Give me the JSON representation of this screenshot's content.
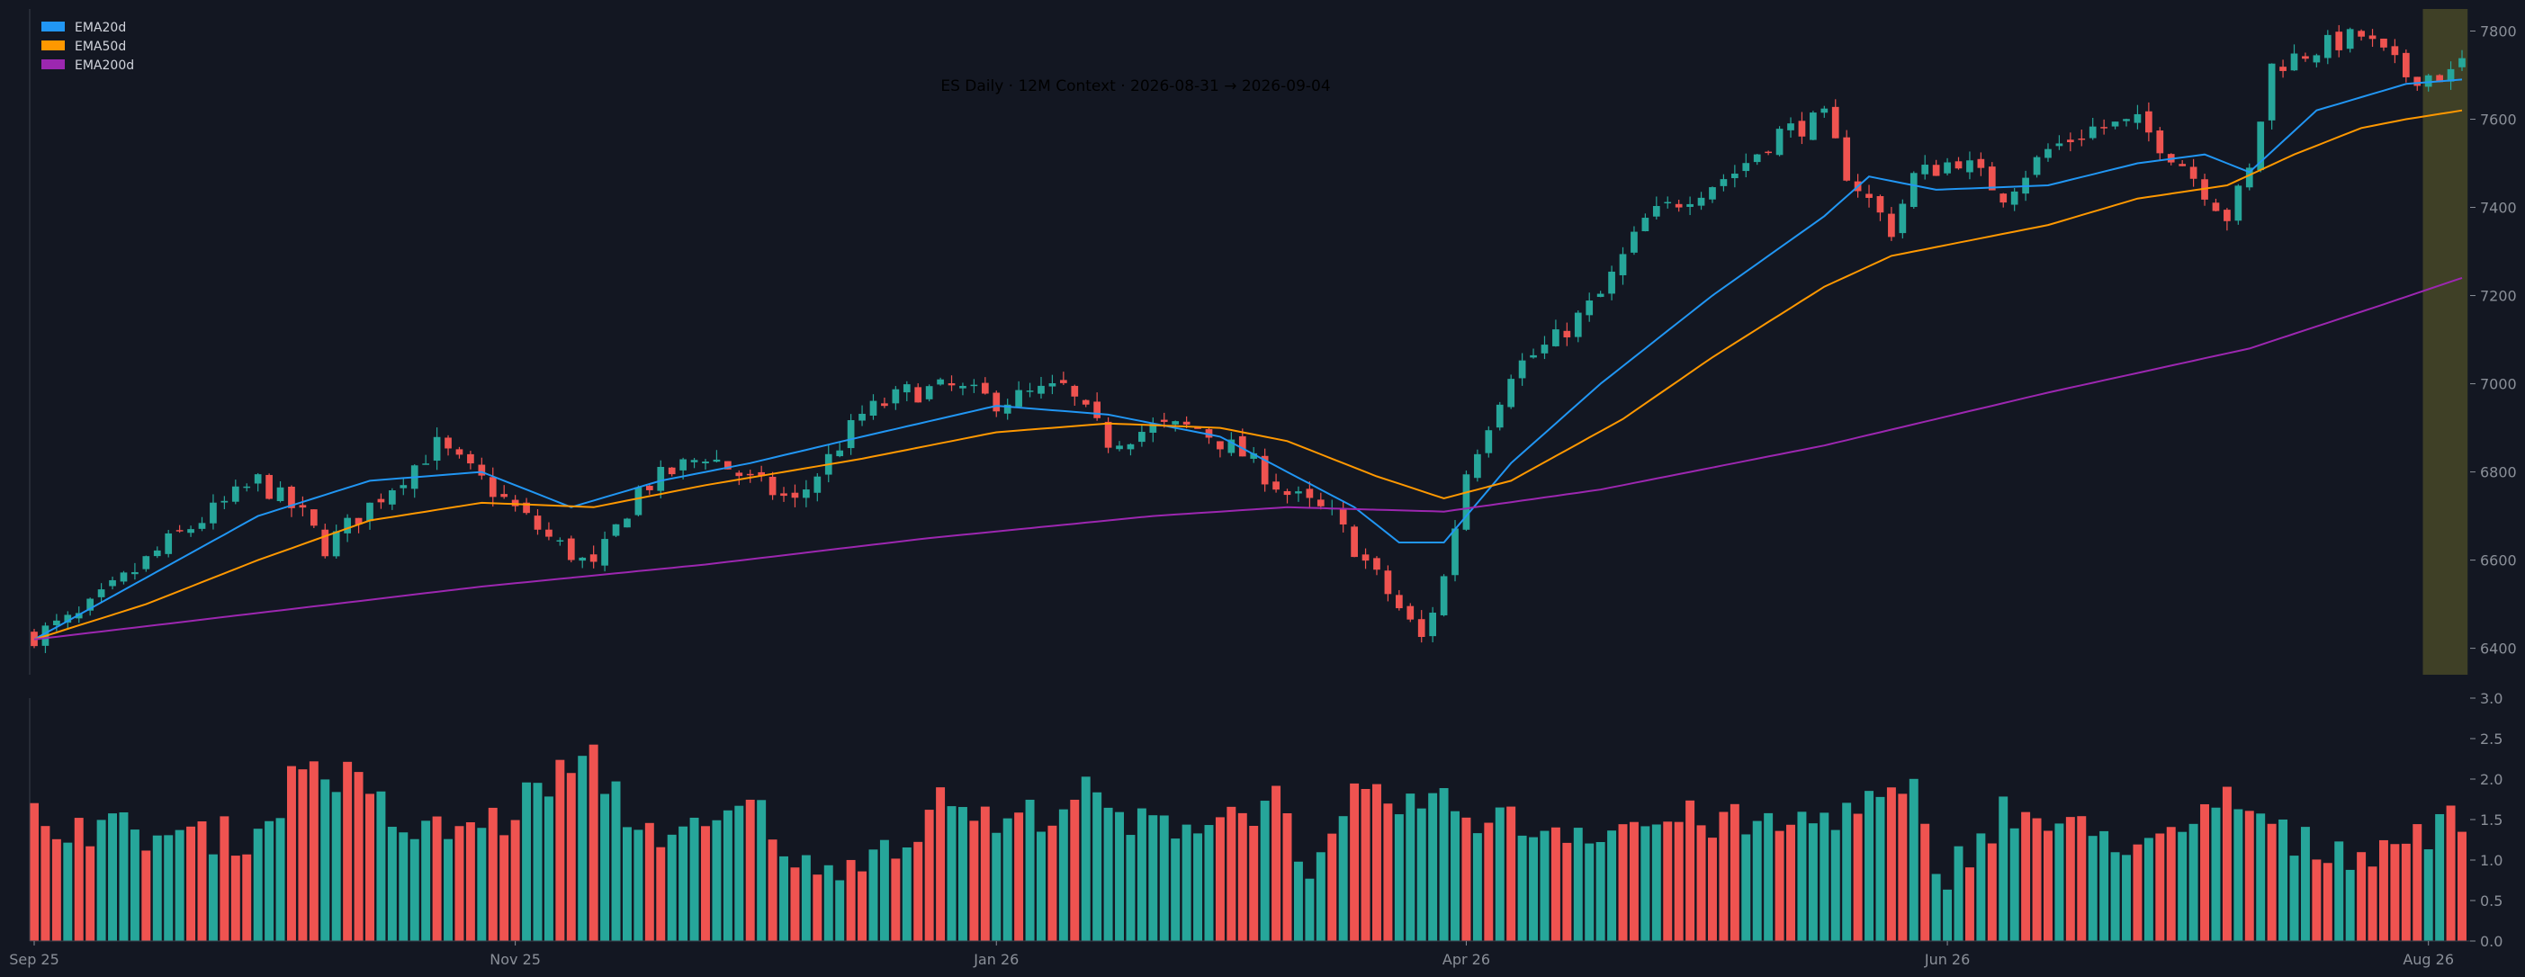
{
  "chart_data": {
    "type": "candlestick",
    "title": "ES Daily · 12M Context · 2026-08-31 → 2026-09-04",
    "price_axis": {
      "ylim": [
        6340,
        7850
      ],
      "ticks": [
        6400,
        6600,
        6800,
        7000,
        7200,
        7400,
        7600,
        7800
      ]
    },
    "volume_axis": {
      "ylim": [
        0,
        3.0
      ],
      "ticks": [
        "0.0",
        "0.5",
        "1.0",
        "1.5",
        "2.0",
        "2.5",
        "3.0"
      ]
    },
    "x_ticks": [
      {
        "label": "Sep 25",
        "index": 0
      },
      {
        "label": "Nov 25",
        "index": 43
      },
      {
        "label": "Jan 26",
        "index": 86
      },
      {
        "label": "Apr 26",
        "index": 128
      },
      {
        "label": "Jun 26",
        "index": 171
      },
      {
        "label": "Aug 26",
        "index": 214
      }
    ],
    "bar_count": 218,
    "highlight_range": {
      "start_index": 214,
      "end_index": 217
    },
    "legend": [
      {
        "name": "EMA20d",
        "color": "#2196f3"
      },
      {
        "name": "EMA50d",
        "color": "#ff9800"
      },
      {
        "name": "EMA200d",
        "color": "#9c27b0"
      }
    ],
    "close_anchors": [
      [
        0,
        6430
      ],
      [
        4,
        6470
      ],
      [
        12,
        6640
      ],
      [
        20,
        6780
      ],
      [
        24,
        6700
      ],
      [
        26,
        6630
      ],
      [
        32,
        6770
      ],
      [
        36,
        6860
      ],
      [
        40,
        6780
      ],
      [
        46,
        6650
      ],
      [
        50,
        6580
      ],
      [
        54,
        6760
      ],
      [
        60,
        6840
      ],
      [
        64,
        6780
      ],
      [
        68,
        6730
      ],
      [
        74,
        6930
      ],
      [
        78,
        6980
      ],
      [
        82,
        6990
      ],
      [
        86,
        6960
      ],
      [
        92,
        6990
      ],
      [
        96,
        6870
      ],
      [
        100,
        6900
      ],
      [
        104,
        6900
      ],
      [
        108,
        6840
      ],
      [
        112,
        6750
      ],
      [
        116,
        6700
      ],
      [
        120,
        6560
      ],
      [
        124,
        6420
      ],
      [
        126,
        6560
      ],
      [
        128,
        6800
      ],
      [
        132,
        7030
      ],
      [
        136,
        7100
      ],
      [
        140,
        7200
      ],
      [
        144,
        7370
      ],
      [
        148,
        7430
      ],
      [
        152,
        7480
      ],
      [
        156,
        7570
      ],
      [
        160,
        7600
      ],
      [
        162,
        7480
      ],
      [
        166,
        7350
      ],
      [
        168,
        7470
      ],
      [
        172,
        7510
      ],
      [
        176,
        7430
      ],
      [
        180,
        7530
      ],
      [
        184,
        7580
      ],
      [
        188,
        7590
      ],
      [
        192,
        7500
      ],
      [
        196,
        7380
      ],
      [
        198,
        7480
      ],
      [
        200,
        7720
      ],
      [
        204,
        7760
      ],
      [
        208,
        7790
      ],
      [
        212,
        7700
      ],
      [
        216,
        7700
      ],
      [
        217,
        7730
      ]
    ],
    "ema_anchors": {
      "EMA20d": [
        [
          0,
          6420
        ],
        [
          10,
          6560
        ],
        [
          20,
          6700
        ],
        [
          30,
          6780
        ],
        [
          40,
          6800
        ],
        [
          48,
          6720
        ],
        [
          56,
          6780
        ],
        [
          64,
          6820
        ],
        [
          74,
          6880
        ],
        [
          86,
          6950
        ],
        [
          96,
          6930
        ],
        [
          106,
          6880
        ],
        [
          112,
          6800
        ],
        [
          118,
          6720
        ],
        [
          122,
          6640
        ],
        [
          126,
          6640
        ],
        [
          132,
          6820
        ],
        [
          140,
          7000
        ],
        [
          150,
          7200
        ],
        [
          160,
          7380
        ],
        [
          164,
          7470
        ],
        [
          170,
          7440
        ],
        [
          180,
          7450
        ],
        [
          188,
          7500
        ],
        [
          194,
          7520
        ],
        [
          198,
          7480
        ],
        [
          204,
          7620
        ],
        [
          212,
          7680
        ],
        [
          217,
          7690
        ]
      ],
      "EMA50d": [
        [
          0,
          6420
        ],
        [
          10,
          6500
        ],
        [
          20,
          6600
        ],
        [
          30,
          6690
        ],
        [
          40,
          6730
        ],
        [
          50,
          6720
        ],
        [
          60,
          6770
        ],
        [
          74,
          6830
        ],
        [
          86,
          6890
        ],
        [
          96,
          6910
        ],
        [
          106,
          6900
        ],
        [
          112,
          6870
        ],
        [
          120,
          6790
        ],
        [
          126,
          6740
        ],
        [
          132,
          6780
        ],
        [
          142,
          6920
        ],
        [
          150,
          7060
        ],
        [
          160,
          7220
        ],
        [
          166,
          7290
        ],
        [
          172,
          7320
        ],
        [
          180,
          7360
        ],
        [
          188,
          7420
        ],
        [
          196,
          7450
        ],
        [
          202,
          7520
        ],
        [
          208,
          7580
        ],
        [
          212,
          7600
        ],
        [
          217,
          7620
        ]
      ],
      "EMA200d": [
        [
          0,
          6420
        ],
        [
          20,
          6480
        ],
        [
          40,
          6540
        ],
        [
          60,
          6590
        ],
        [
          80,
          6650
        ],
        [
          100,
          6700
        ],
        [
          112,
          6720
        ],
        [
          126,
          6710
        ],
        [
          140,
          6760
        ],
        [
          160,
          6860
        ],
        [
          180,
          6980
        ],
        [
          198,
          7080
        ],
        [
          210,
          7180
        ],
        [
          217,
          7240
        ]
      ]
    },
    "volume_anchors": [
      [
        0,
        1.5
      ],
      [
        12,
        1.3
      ],
      [
        20,
        1.3
      ],
      [
        24,
        2.2
      ],
      [
        28,
        2.0
      ],
      [
        34,
        1.3
      ],
      [
        42,
        1.5
      ],
      [
        46,
        2.0
      ],
      [
        50,
        2.2
      ],
      [
        54,
        1.4
      ],
      [
        60,
        1.3
      ],
      [
        64,
        1.7
      ],
      [
        66,
        1.4
      ],
      [
        70,
        0.7
      ],
      [
        72,
        1.0
      ],
      [
        78,
        1.3
      ],
      [
        82,
        1.8
      ],
      [
        86,
        1.4
      ],
      [
        90,
        1.6
      ],
      [
        94,
        1.8
      ],
      [
        98,
        1.4
      ],
      [
        104,
        1.5
      ],
      [
        108,
        1.6
      ],
      [
        112,
        1.8
      ],
      [
        114,
        0.6
      ],
      [
        118,
        1.7
      ],
      [
        124,
        1.7
      ],
      [
        128,
        1.6
      ],
      [
        134,
        1.4
      ],
      [
        140,
        1.4
      ],
      [
        148,
        1.5
      ],
      [
        156,
        1.4
      ],
      [
        164,
        1.7
      ],
      [
        168,
        1.8
      ],
      [
        170,
        0.7
      ],
      [
        176,
        1.6
      ],
      [
        184,
        1.3
      ],
      [
        192,
        1.2
      ],
      [
        196,
        1.8
      ],
      [
        202,
        1.2
      ],
      [
        208,
        1.1
      ],
      [
        212,
        1.3
      ],
      [
        217,
        1.5
      ]
    ],
    "colors": {
      "background": "#131722",
      "up": "#26a69a",
      "down": "#ef5350",
      "text": "#8a8f98",
      "highlight": "#6b6a2a"
    }
  }
}
